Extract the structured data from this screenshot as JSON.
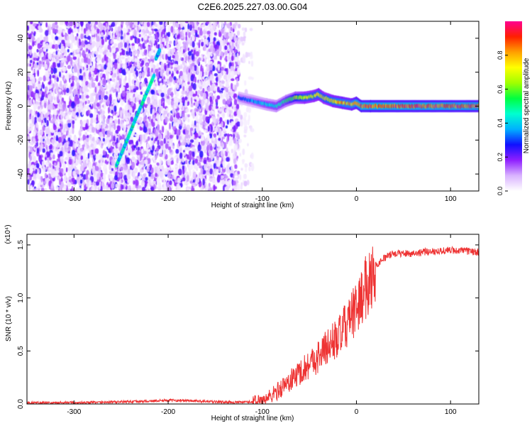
{
  "figure_title": "C2E6.2025.227.03.00.G04",
  "chart_data": [
    {
      "type": "heatmap",
      "title": "C2E6.2025.227.03.00.G04",
      "xlabel": "Height of straight line (km)",
      "ylabel": "Frequency (Hz)",
      "xlim": [
        -350,
        130
      ],
      "ylim": [
        -50,
        50
      ],
      "xticks": [
        -300,
        -200,
        -100,
        0,
        100
      ],
      "yticks": [
        -40,
        -20,
        0,
        20,
        40
      ],
      "grid": false,
      "colorbar": {
        "label": "Normalized spectral amplitude",
        "range": [
          0,
          1
        ],
        "ticks": [
          0.0,
          0.2,
          0.4,
          0.6,
          0.8
        ],
        "colors": [
          "#ffffff",
          "#d9b3ff",
          "#8f1fff",
          "#1010ff",
          "#00b0ff",
          "#00ffd0",
          "#00ff40",
          "#a0ff00",
          "#ffff00",
          "#ffa000",
          "#ff2000",
          "#ff0090"
        ]
      },
      "features": [
        {
          "name": "noise",
          "x_range": [
            -350,
            -125
          ],
          "y_range": [
            -50,
            50
          ],
          "amplitude": 0.18
        },
        {
          "name": "sparse-noise",
          "x_range": [
            -125,
            -110
          ],
          "y_range": [
            -50,
            50
          ],
          "amplitude": 0.05
        },
        {
          "name": "tone-track",
          "x": [
            -125,
            -110,
            -95,
            -85,
            -75,
            -65,
            -55,
            -45,
            -40,
            -35,
            -25,
            -15,
            -5,
            0,
            5,
            15,
            130
          ],
          "y": [
            5,
            3,
            1,
            0,
            3,
            5,
            5,
            6,
            7,
            5,
            3,
            2,
            1,
            2,
            0,
            0,
            0
          ],
          "amplitude": [
            0.3,
            0.35,
            0.4,
            0.45,
            0.5,
            0.6,
            0.7,
            0.7,
            0.75,
            0.7,
            0.75,
            0.8,
            0.8,
            0.85,
            0.9,
            0.9,
            0.9
          ]
        },
        {
          "name": "diagonal-streak",
          "x": [
            -255,
            -245,
            -235,
            -225,
            -215
          ],
          "y": [
            -35,
            -22,
            -8,
            5,
            18
          ],
          "amplitude": 0.45
        },
        {
          "name": "short-streak",
          "x": [
            -213,
            -209
          ],
          "y": [
            28,
            33
          ],
          "amplitude": 0.4
        }
      ]
    },
    {
      "type": "line",
      "xlabel": "Height of straight line (km)",
      "ylabel": "SNR (10 * v/v)",
      "exponent_label": "(x10⁴)",
      "xlim": [
        -350,
        130
      ],
      "ylim": [
        0,
        1.6
      ],
      "xticks": [
        -300,
        -200,
        -100,
        0,
        100
      ],
      "yticks": [
        0.0,
        0.5,
        1.0,
        1.5
      ],
      "ytick_labels": [
        "0.0",
        "0.5",
        "1.0",
        "1.5"
      ],
      "grid": false,
      "color": "#ee3333",
      "x": [
        -350,
        -325,
        -300,
        -275,
        -250,
        -225,
        -200,
        -175,
        -150,
        -125,
        -110,
        -100,
        -90,
        -80,
        -70,
        -60,
        -50,
        -40,
        -30,
        -20,
        -10,
        0,
        5,
        10,
        15,
        20,
        30,
        40,
        60,
        80,
        100,
        120,
        130
      ],
      "y": [
        0.01,
        0.01,
        0.012,
        0.015,
        0.02,
        0.025,
        0.035,
        0.03,
        0.02,
        0.015,
        0.02,
        0.03,
        0.08,
        0.15,
        0.22,
        0.3,
        0.38,
        0.45,
        0.55,
        0.62,
        0.75,
        0.9,
        1.0,
        1.1,
        1.2,
        1.3,
        1.38,
        1.42,
        1.42,
        1.44,
        1.45,
        1.44,
        1.43
      ]
    }
  ]
}
